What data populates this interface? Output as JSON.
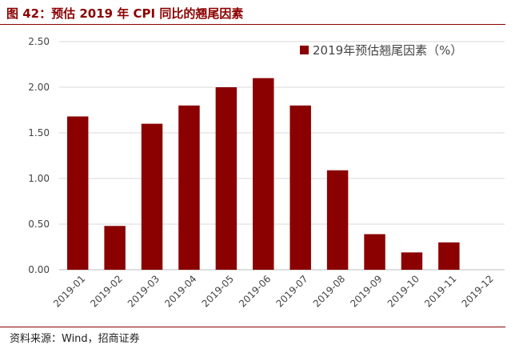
{
  "header": {
    "title": "图 42：预估 2019 年 CPI 同比的翘尾因素"
  },
  "footer": {
    "source": "资料来源：Wind，招商证券"
  },
  "chart_data": {
    "type": "bar",
    "categories": [
      "2019-01",
      "2019-02",
      "2019-03",
      "2019-04",
      "2019-05",
      "2019-06",
      "2019-07",
      "2019-08",
      "2019-09",
      "2019-10",
      "2019-11",
      "2019-12"
    ],
    "series": [
      {
        "name": "2019年预估翘尾因素（%）",
        "values": [
          1.68,
          0.48,
          1.6,
          1.8,
          2.0,
          2.1,
          1.8,
          1.09,
          0.39,
          0.19,
          0.3,
          0.0
        ],
        "color": "#8b0000"
      }
    ],
    "ylim": [
      0,
      2.5
    ],
    "yticks": [
      "0.00",
      "0.50",
      "1.00",
      "1.50",
      "2.00",
      "2.50"
    ],
    "ytick_values": [
      0,
      0.5,
      1.0,
      1.5,
      2.0,
      2.5
    ],
    "grid": true,
    "legend_position": "top-right"
  }
}
